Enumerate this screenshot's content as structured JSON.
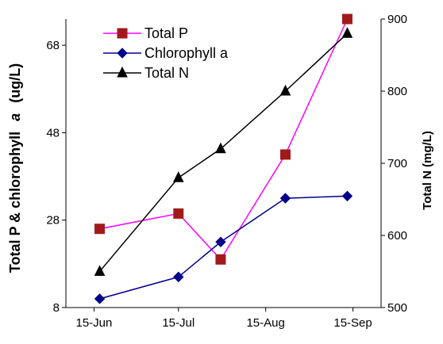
{
  "chart_data": {
    "type": "line",
    "x": [
      "2023-06-17",
      "2023-07-15",
      "2023-07-30",
      "2023-08-22",
      "2023-09-13"
    ],
    "xticks": [
      "15-Jun",
      "15-Jul",
      "15-Aug",
      "15-Sep"
    ],
    "xlim": [
      "2023-06-05",
      "2023-09-25"
    ],
    "left_axis": {
      "label_main": "Total P & chlorophyll",
      "label_italic": "a",
      "label_unit": "(ug/L)",
      "ylim": [
        8,
        74
      ],
      "ticks": [
        8,
        28,
        48,
        68
      ]
    },
    "right_axis": {
      "label": "Total N (mg/L)",
      "ylim": [
        500,
        900
      ],
      "ticks": [
        500,
        600,
        700,
        800,
        900
      ]
    },
    "series": [
      {
        "name": "Total P",
        "axis": "left",
        "values": [
          26,
          29.5,
          19,
          43,
          74
        ],
        "color": "#ff00ff",
        "marker": "square",
        "marker_color": "#a11a1a"
      },
      {
        "name": "Chlorophyll a",
        "axis": "left",
        "values": [
          10,
          15,
          23,
          33,
          33.5
        ],
        "color": "#00008b",
        "marker": "diamond",
        "marker_color": "#00008b"
      },
      {
        "name": "Total N",
        "axis": "right",
        "values": [
          550,
          680,
          720,
          800,
          880
        ],
        "color": "#000000",
        "marker": "triangle",
        "marker_color": "#000000"
      }
    ],
    "legend_position": "top-left",
    "grid": false
  }
}
